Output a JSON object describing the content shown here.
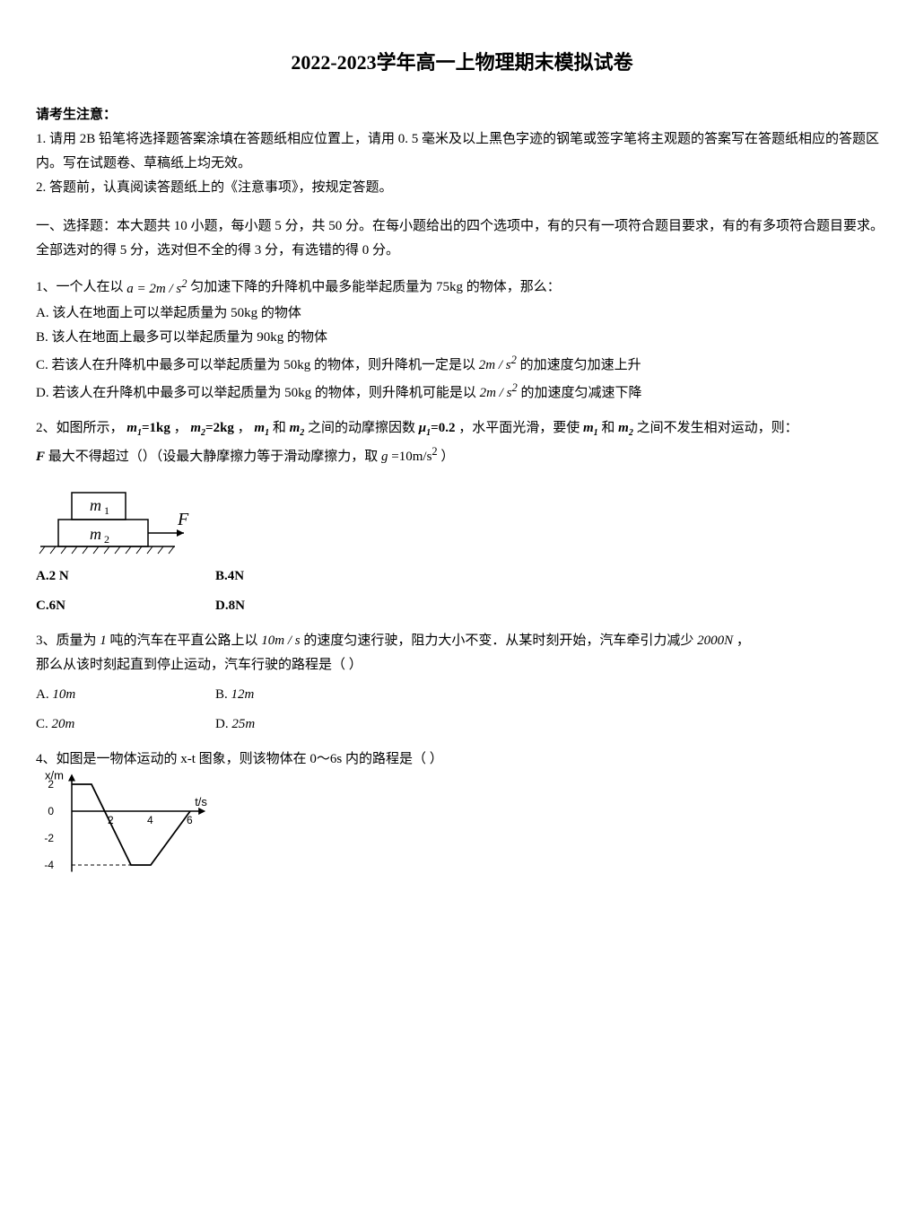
{
  "title": "2022-2023学年高一上物理期末模拟试卷",
  "instructions": {
    "head": "请考生注意：",
    "line1": "1. 请用 2B 铅笔将选择题答案涂填在答题纸相应位置上，请用 0. 5 毫米及以上黑色字迹的钢笔或签字笔将主观题的答案写在答题纸相应的答题区内。写在试题卷、草稿纸上均无效。",
    "line2": "2. 答题前，认真阅读答题纸上的《注意事项》，按规定答题。"
  },
  "section1_head": "一、选择题：本大题共 10 小题，每小题 5 分，共 50 分。在每小题给出的四个选项中，有的只有一项符合题目要求，有的有多项符合题目要求。全部选对的得 5 分，选对但不全的得 3 分，有选错的得 0 分。",
  "q1": {
    "stem_a": "1、一个人在以 ",
    "formula1": "a = 2m / s",
    "formula1_sup": "2",
    "stem_b": " 匀加速下降的升降机中最多能举起质量为 75kg 的物体，那么：",
    "optA": "A. 该人在地面上可以举起质量为 50kg 的物体",
    "optB": "B. 该人在地面上最多可以举起质量为 90kg 的物体",
    "optC_a": "C. 若该人在升降机中最多可以举起质量为 50kg 的物体，则升降机一定是以 ",
    "optC_formula": "2m / s",
    "optC_sup": "2",
    "optC_b": " 的加速度匀加速上升",
    "optD_a": "D. 若该人在升降机中最多可以举起质量为 50kg 的物体，则升降机可能是以 ",
    "optD_formula": "2m / s",
    "optD_sup": "2",
    "optD_b": " 的加速度匀减速下降"
  },
  "q2": {
    "stem_a": "2、如图所示，",
    "m1_a": "m",
    "m1_sub": "1",
    "m1_b": "=1kg",
    "sep1": "，",
    "m2_a": "m",
    "m2_sub": "2",
    "m2_b": "=2kg",
    "sep2": "，",
    "mid_a": "m",
    "mid_sub1": "1",
    "mid_b": " 和 ",
    "mid_sub2": "2",
    "mid_c": " 之间的动摩擦因数 ",
    "mu_a": "μ",
    "mu_sub": "1",
    "mu_b": "=0.2",
    "stem_b": "，水平面光滑，要使 ",
    "stem_c": " 和 ",
    "stem_d": " 之间不发生相对运动，则：",
    "stem2_a": "F",
    "stem2_b": " 最大不得超过（）（设最大静摩擦力等于滑动摩擦力，取 ",
    "stem2_c": "g",
    "stem2_d": "=10m/s",
    "stem2_sup": "2",
    "stem2_e": "）",
    "F_label": "F",
    "box_m1": "m",
    "box_m1_sub": "1",
    "box_m2": "m",
    "box_m2_sub": "2",
    "optA": "A.2 N",
    "optB": "B.4N",
    "optC": "C.6N",
    "optD": "D.8N"
  },
  "q3": {
    "stem_a": "3、质量为",
    "val1": "1",
    "stem_b": "吨的汽车在平直公路上以",
    "val2": "10m / s",
    "stem_c": " 的速度匀速行驶，阻力大小不变．从某时刻开始，汽车牵引力减少",
    "val3": "2000N",
    "stem_d": "，",
    "stem_e": "那么从该时刻起直到停止运动，汽车行驶的路程是（     ）",
    "optA_pre": "A. ",
    "optA_val": "10m",
    "optB_pre": "B. ",
    "optB_val": "12m",
    "optC_pre": "C. ",
    "optC_val": "20m",
    "optD_pre": "D. ",
    "optD_val": "25m"
  },
  "q4": {
    "stem": "4、如图是一物体运动的 x-t 图象，则该物体在 0～6s 内的路程是（    ）",
    "axis_x_label": "t/s",
    "axis_y_label": "x/m",
    "y_ticks": [
      -4,
      -2,
      0,
      2
    ],
    "x_ticks": [
      2,
      4,
      6
    ],
    "graph": {
      "type": "line",
      "background_color": "#ffffff",
      "axis_color": "#000000",
      "line_color": "#000000",
      "dash_color": "#000000",
      "points": [
        [
          0,
          2
        ],
        [
          1,
          2
        ],
        [
          3,
          -4
        ],
        [
          4,
          -4
        ],
        [
          6,
          0
        ]
      ],
      "dashed_refs": [
        {
          "from": [
            0,
            2
          ],
          "to": [
            1,
            2
          ]
        },
        {
          "from": [
            0,
            -4
          ],
          "to": [
            3,
            -4
          ]
        }
      ],
      "x_range": [
        0,
        6.6
      ],
      "y_range": [
        -4.5,
        2.5
      ]
    }
  },
  "colors": {
    "text": "#000000",
    "bg": "#ffffff"
  }
}
